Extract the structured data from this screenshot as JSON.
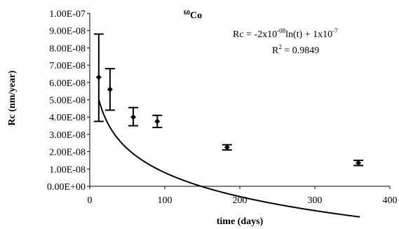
{
  "chart_data": {
    "type": "scatter",
    "title_superscript": "60",
    "title_main": "Co",
    "xlabel": "time (days)",
    "ylabel": "Rc (nm/year)",
    "xlim": [
      0,
      400
    ],
    "ylim": [
      0,
      1e-07
    ],
    "x_ticks": [
      0,
      100,
      200,
      300,
      400
    ],
    "x_tick_labels": [
      "0",
      "100",
      "200",
      "300",
      "400"
    ],
    "y_ticks": [
      0,
      1e-08,
      2e-08,
      3e-08,
      4e-08,
      5e-08,
      6e-08,
      7e-08,
      8e-08,
      9e-08,
      1e-07
    ],
    "y_tick_labels": [
      "0.00E+00",
      "1.00E-08",
      "2.00E-08",
      "3.00E-08",
      "4.00E-08",
      "5.00E-08",
      "6.00E-08",
      "7.00E-08",
      "8.00E-08",
      "9.00E-08",
      "1.00E-07"
    ],
    "grid": false,
    "legend": "none",
    "series": [
      {
        "x": [
          12,
          27,
          58,
          90,
          183,
          358
        ],
        "y": [
          6.3e-08,
          5.6e-08,
          4e-08,
          3.75e-08,
          2.25e-08,
          1.35e-08
        ],
        "err_low": [
          3.75e-08,
          4.4e-08,
          3.5e-08,
          3.4e-08,
          2.1e-08,
          1.2e-08
        ],
        "err_high": [
          8.8e-08,
          6.8e-08,
          4.55e-08,
          4.1e-08,
          2.4e-08,
          1.5e-08
        ]
      }
    ],
    "fit": {
      "equation_lead": "Rc = -2x10",
      "equation_exp1": "-08",
      "equation_mid": "ln(t) + 1x10",
      "equation_exp2": "-7",
      "r2_lead": "R",
      "r2_exp": "2",
      "r2_tail": " = 0.9849",
      "a": -2e-08,
      "b": 1e-07,
      "x_range": [
        12,
        360
      ]
    }
  }
}
